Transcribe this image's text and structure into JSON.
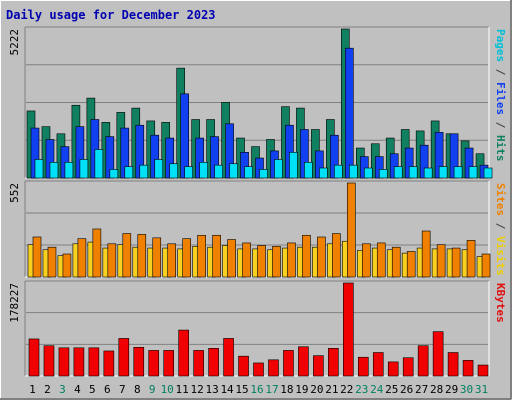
{
  "chart_data": [
    {
      "type": "bar",
      "title": "Daily usage for December 2023",
      "ylabel_parts": [
        {
          "text": "Pages",
          "color": "#00c0d8"
        },
        {
          "text": " / ",
          "color": "#404040"
        },
        {
          "text": "Files",
          "color": "#1040f0"
        },
        {
          "text": " / ",
          "color": "#404040"
        },
        {
          "text": "Hits",
          "color": "#108060"
        }
      ],
      "ymax_label": "5222",
      "ylim": [
        0,
        5222
      ],
      "categories": [
        "1",
        "2",
        "3",
        "4",
        "5",
        "6",
        "7",
        "8",
        "9",
        "10",
        "11",
        "12",
        "13",
        "14",
        "15",
        "16",
        "17",
        "18",
        "19",
        "20",
        "21",
        "22",
        "23",
        "24",
        "25",
        "26",
        "27",
        "28",
        "29",
        "30",
        "31"
      ],
      "series": [
        {
          "name": "Hits",
          "color": "#108060",
          "values": [
            2350,
            1800,
            1550,
            2550,
            2800,
            1950,
            2300,
            2450,
            2000,
            1950,
            3850,
            2050,
            2050,
            2650,
            1400,
            1100,
            1350,
            2500,
            2450,
            1700,
            2050,
            5222,
            1050,
            1200,
            1400,
            1700,
            1650,
            2000,
            1550,
            1300,
            850
          ]
        },
        {
          "name": "Files",
          "color": "#1040f0",
          "values": [
            1750,
            1350,
            1100,
            1800,
            2050,
            1450,
            1750,
            1850,
            1500,
            1400,
            2950,
            1400,
            1450,
            1900,
            900,
            700,
            950,
            1850,
            1700,
            950,
            1500,
            4550,
            750,
            750,
            850,
            1050,
            1150,
            1600,
            1550,
            1050,
            450
          ]
        },
        {
          "name": "Pages",
          "color": "#00e0f8",
          "values": [
            650,
            550,
            550,
            650,
            1000,
            300,
            400,
            450,
            650,
            500,
            400,
            550,
            450,
            500,
            400,
            300,
            650,
            900,
            550,
            350,
            450,
            450,
            350,
            300,
            400,
            400,
            350,
            400,
            400,
            400,
            350
          ]
        }
      ]
    },
    {
      "type": "bar",
      "ylabel_parts": [
        {
          "text": "Sites",
          "color": "#f08000"
        },
        {
          "text": " / ",
          "color": "#404040"
        },
        {
          "text": "Visits",
          "color": "#f0d000"
        }
      ],
      "ymax_label": "552",
      "ylim": [
        0,
        552
      ],
      "series": [
        {
          "name": "Visits",
          "color": "#f8d020",
          "values": [
            190,
            160,
            125,
            195,
            205,
            170,
            190,
            175,
            170,
            170,
            165,
            180,
            175,
            185,
            165,
            165,
            160,
            170,
            175,
            175,
            195,
            210,
            155,
            170,
            160,
            140,
            170,
            165,
            165,
            160,
            120
          ]
        },
        {
          "name": "Sites",
          "color": "#f08000",
          "values": [
            235,
            175,
            135,
            225,
            282,
            195,
            255,
            250,
            230,
            195,
            225,
            245,
            245,
            220,
            200,
            185,
            180,
            200,
            245,
            235,
            255,
            552,
            195,
            200,
            175,
            150,
            270,
            190,
            170,
            215,
            135
          ]
        }
      ]
    },
    {
      "type": "bar",
      "ylabel_parts": [
        {
          "text": "KBytes",
          "color": "#e01010"
        }
      ],
      "ymax_label": "178227",
      "ylim": [
        0,
        178227
      ],
      "series": [
        {
          "name": "KBytes",
          "color": "#f00000",
          "values": [
            71000,
            58000,
            54000,
            54000,
            54000,
            48000,
            72000,
            55000,
            49000,
            49000,
            88000,
            49000,
            53000,
            72000,
            38000,
            25000,
            31000,
            49000,
            56000,
            39000,
            53000,
            178227,
            36000,
            45000,
            27000,
            35000,
            58000,
            85000,
            45000,
            30000,
            21000
          ]
        }
      ]
    }
  ],
  "x_label_colors": [
    "#000000",
    "#000000",
    "#008060",
    "#000000",
    "#000000",
    "#000000",
    "#000000",
    "#000000",
    "#008060",
    "#008060",
    "#000000",
    "#000000",
    "#000000",
    "#000000",
    "#000000",
    "#008060",
    "#008060",
    "#000000",
    "#000000",
    "#000000",
    "#000000",
    "#000000",
    "#008060",
    "#008060",
    "#000000",
    "#000000",
    "#000000",
    "#000000",
    "#000000",
    "#008060",
    "#008060"
  ]
}
